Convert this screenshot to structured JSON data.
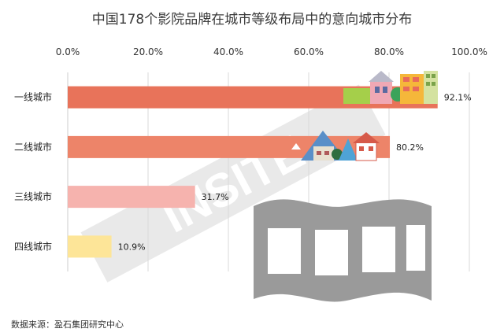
{
  "chart_data": {
    "type": "bar",
    "orientation": "horizontal",
    "title": "中国178个影院品牌在城市等级布局中的意向城市分布",
    "categories": [
      "一线城市",
      "二线城市",
      "三线城市",
      "四线城市"
    ],
    "values": [
      92.1,
      80.2,
      31.7,
      10.9
    ],
    "value_labels": [
      "92.1%",
      "80.2%",
      "31.7%",
      "10.9%"
    ],
    "bar_colors": [
      "#e8735a",
      "#ed8469",
      "#f6b3ae",
      "#fde598"
    ],
    "xlim": [
      0,
      100
    ],
    "xticks": [
      0,
      20,
      40,
      60,
      80,
      100
    ],
    "xtick_labels": [
      "0.0%",
      "20.0%",
      "40.0%",
      "60.0%",
      "80.0%",
      "100.0%"
    ],
    "grid": "vertical",
    "axis_position": "top"
  },
  "source": "数据来源：盈石集团研究中心",
  "watermark": "INSITE"
}
